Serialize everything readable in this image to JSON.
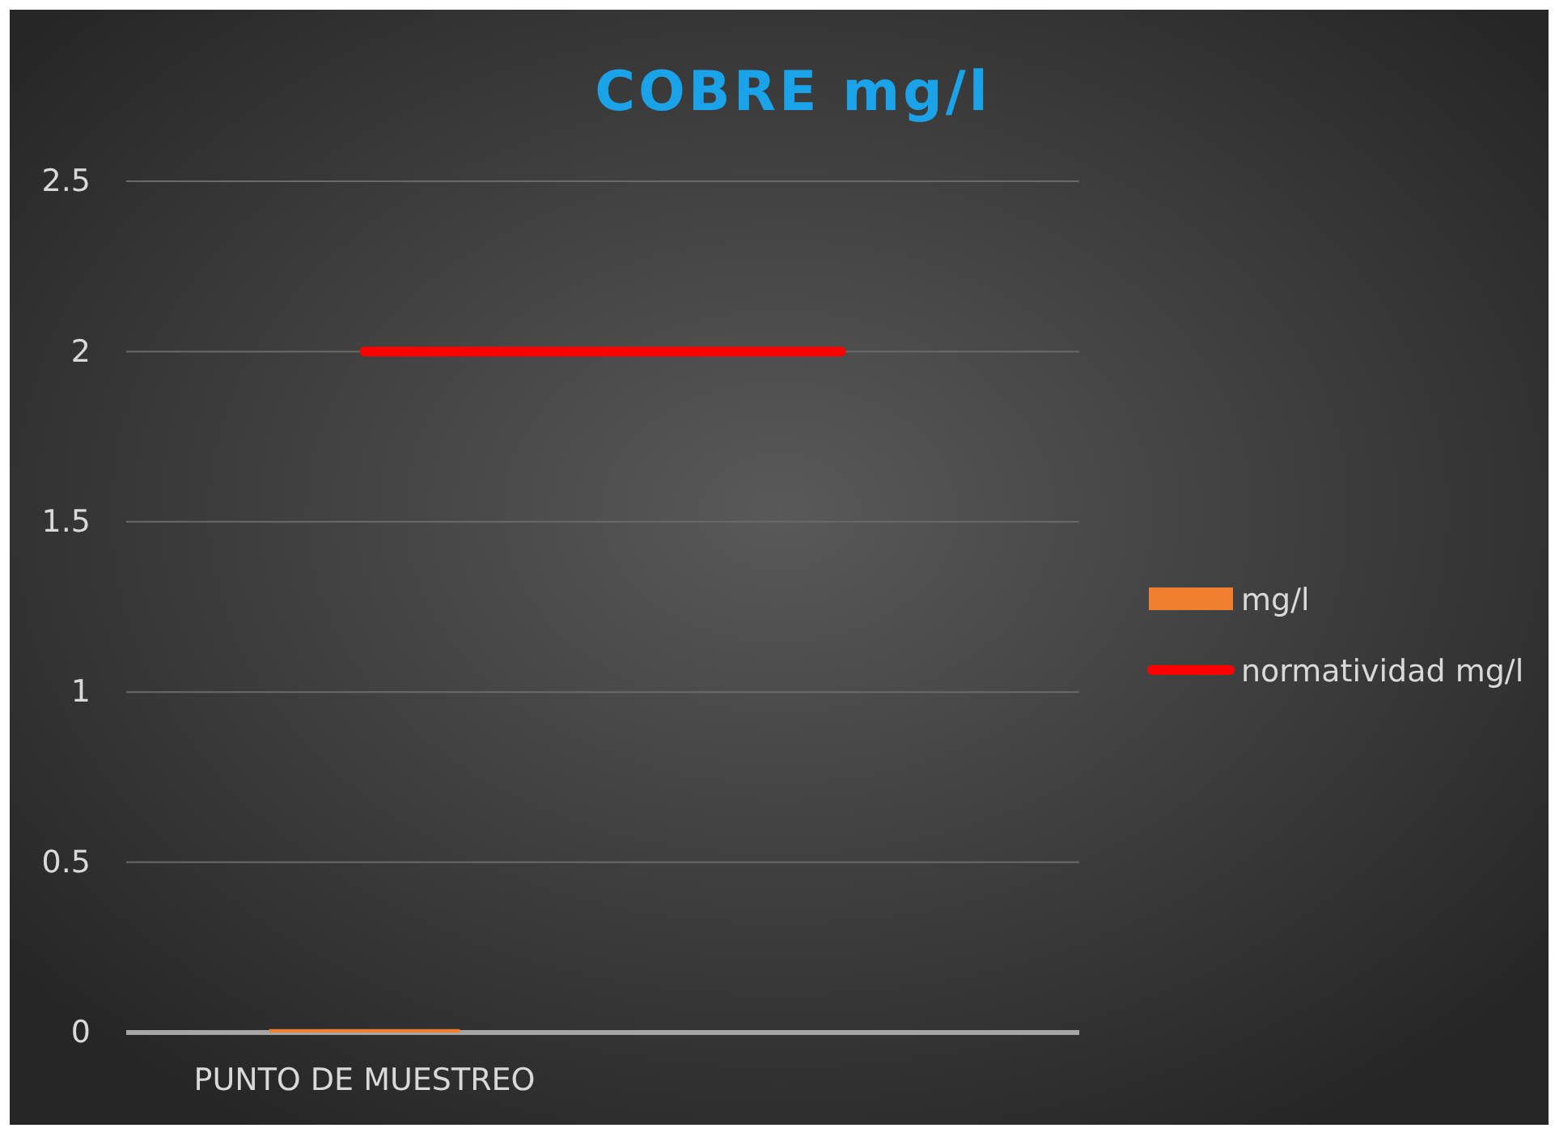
{
  "chart_data": {
    "type": "bar",
    "title": "COBRE mg/l",
    "categories": [
      "PUNTO DE MUESTREO",
      null
    ],
    "series": [
      {
        "name": "mg/l",
        "color": "#f08030",
        "values": [
          0.01,
          null
        ]
      },
      {
        "name": "normatividad mg/l",
        "type": "line",
        "color": "#ff0000",
        "values": [
          2,
          2
        ]
      }
    ],
    "ylim": [
      0,
      2.5
    ],
    "yticks": [
      0,
      0.5,
      1,
      1.5,
      2,
      2.5
    ],
    "grid": "y",
    "legend": "right",
    "marker": "none"
  }
}
